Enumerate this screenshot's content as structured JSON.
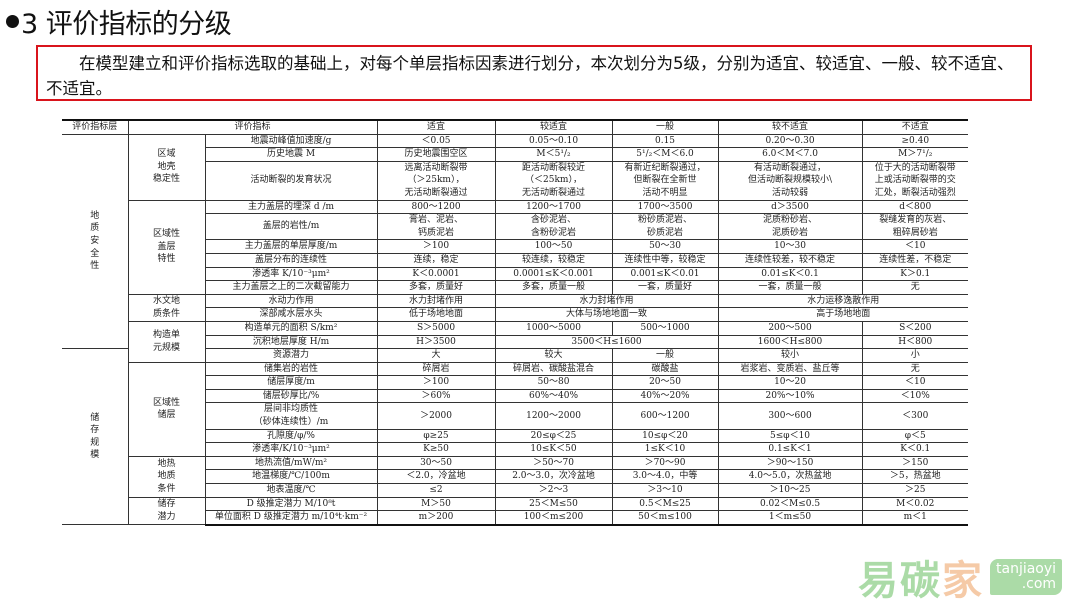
{
  "title": "3 评价指标的分级",
  "intro": "在模型建立和评价指标选取的基础上，对每个单层指标因素进行划分，本次划分为5级，分别为适宜、较适宜、一般、较不适宜、不适宜。",
  "watermark": {
    "cn1": "易",
    "cn2": "碳",
    "cn3": "家",
    "en1": "tanjiaoyi",
    "en2": ".com"
  },
  "table": {
    "header": [
      {
        "text": "评价指标层"
      },
      {
        "text": "评价指标",
        "colspan": 2
      },
      {
        "text": "适宜"
      },
      {
        "text": "较适宜"
      },
      {
        "text": "一般"
      },
      {
        "text": "较不适宜"
      },
      {
        "text": "不适宜"
      }
    ],
    "rows": [
      [
        {
          "text": "地\n质\n安\n全\n性",
          "rowspan": 13,
          "cls": "layer"
        },
        {
          "text": "区域\n地壳\n稳定性",
          "rowspan": 3
        },
        {
          "text": "地震动峰值加速度/g"
        },
        {
          "text": "＜0.05"
        },
        {
          "text": "0.05～0.10"
        },
        {
          "text": "0.15"
        },
        {
          "text": "0.20～0.30"
        },
        {
          "text": "≥0.40"
        }
      ],
      [
        {
          "text": "历史地震 M"
        },
        {
          "text": "历史地震围空区"
        },
        {
          "text": "M＜5¹/₂"
        },
        {
          "text": "5¹/₂＜M＜6.0"
        },
        {
          "text": "6.0＜M＜7.0"
        },
        {
          "text": "M＞7¹/₂"
        }
      ],
      [
        {
          "text": "活动断裂的发育状况"
        },
        {
          "text": "远离活动断裂带\n（＞25km），\n无活动断裂通过"
        },
        {
          "text": "距活动断裂较近\n（＜25km），\n无活动断裂通过"
        },
        {
          "text": "有新近纪断裂通过，\n但断裂在全新世\n活动不明显"
        },
        {
          "text": "有活动断裂通过，\n但活动断裂规模较小\\\n活动较弱"
        },
        {
          "text": "位于大的活动断裂带\n上或活动断裂带的交\n汇处，断裂活动强烈"
        }
      ],
      [
        {
          "text": "区域性\n盖层\n特性",
          "rowspan": 6
        },
        {
          "text": "主力盖层的埋深 d /m"
        },
        {
          "text": "800～1200"
        },
        {
          "text": "1200～1700"
        },
        {
          "text": "1700～3500"
        },
        {
          "text": "d＞3500"
        },
        {
          "text": "d＜800"
        }
      ],
      [
        {
          "text": "盖层的岩性/m"
        },
        {
          "text": "膏岩、泥岩、\n钙质泥岩"
        },
        {
          "text": "含砂泥岩、\n含粉砂泥岩"
        },
        {
          "text": "粉砂质泥岩、\n砂质泥岩"
        },
        {
          "text": "泥质粉砂岩、\n泥质砂岩"
        },
        {
          "text": "裂缝发育的灰岩、\n粗碎屑砂岩"
        }
      ],
      [
        {
          "text": "主力盖层的单层厚度/m"
        },
        {
          "text": "＞100"
        },
        {
          "text": "100～50"
        },
        {
          "text": "50～30"
        },
        {
          "text": "10～30"
        },
        {
          "text": "＜10"
        }
      ],
      [
        {
          "text": "盖层分布的连续性"
        },
        {
          "text": "连续，稳定"
        },
        {
          "text": "较连续，较稳定"
        },
        {
          "text": "连续性中等，较稳定"
        },
        {
          "text": "连续性较差，较不稳定"
        },
        {
          "text": "连续性差，不稳定"
        }
      ],
      [
        {
          "text": "渗透率 K/10⁻³μm²"
        },
        {
          "text": "K＜0.0001"
        },
        {
          "text": "0.0001≤K＜0.001"
        },
        {
          "text": "0.001≤K＜0.01"
        },
        {
          "text": "0.01≤K＜0.1"
        },
        {
          "text": "K＞0.1"
        }
      ],
      [
        {
          "text": "主力盖层之上的二次截留能力"
        },
        {
          "text": "多套，质量好"
        },
        {
          "text": "多套，质量一般"
        },
        {
          "text": "一套，质量好"
        },
        {
          "text": "一套，质量一般"
        },
        {
          "text": "无"
        }
      ],
      [
        {
          "text": "水文地\n质条件",
          "rowspan": 2
        },
        {
          "text": "水动力作用"
        },
        {
          "text": "水力封堵作用"
        },
        {
          "text": "水力封堵作用",
          "colspan": 2
        },
        {
          "text": "水力运移逸散作用",
          "colspan": 2
        }
      ],
      [
        {
          "text": "深部咸水层水头"
        },
        {
          "text": "低于场地地面"
        },
        {
          "text": "大体与场地地面一致",
          "colspan": 2
        },
        {
          "text": "高于场地地面",
          "colspan": 2
        }
      ],
      [
        {
          "text": "构造单\n元规模",
          "rowspan": 3
        },
        {
          "text": "构造单元的面积 S/km²"
        },
        {
          "text": "S＞5000"
        },
        {
          "text": "1000～5000"
        },
        {
          "text": "500～1000"
        },
        {
          "text": "200～500"
        },
        {
          "text": "S＜200"
        }
      ],
      [
        {
          "text": "沉积地层厚度 H/m"
        },
        {
          "text": "H＞3500"
        },
        {
          "text": "3500＜H≤1600",
          "colspan": 2
        },
        {
          "text": "1600＜H≤800"
        },
        {
          "text": "H＜800"
        }
      ],
      [
        {
          "text": "储\n存\n规\n模",
          "rowspan": 15,
          "cls": "layer"
        },
        {
          "text": "资源潜力"
        },
        {
          "text": "大"
        },
        {
          "text": "较大"
        },
        {
          "text": "一般"
        },
        {
          "text": "较小"
        },
        {
          "text": "小"
        }
      ],
      [
        {
          "text": "区域性\n储层",
          "rowspan": 6
        },
        {
          "text": "储集岩的岩性"
        },
        {
          "text": "碎屑岩"
        },
        {
          "text": "碎屑岩、碳酸盐混合"
        },
        {
          "text": "碳酸盐"
        },
        {
          "text": "岩浆岩、变质岩、盐丘等"
        },
        {
          "text": "无"
        }
      ],
      [
        {
          "text": "储层厚度/m"
        },
        {
          "text": "＞100"
        },
        {
          "text": "50～80"
        },
        {
          "text": "20～50"
        },
        {
          "text": "10～20"
        },
        {
          "text": "＜10"
        }
      ],
      [
        {
          "text": "储层砂厚比/%"
        },
        {
          "text": "＞60%"
        },
        {
          "text": "60%～40%"
        },
        {
          "text": "40%～20%"
        },
        {
          "text": "20%～10%"
        },
        {
          "text": "＜10%"
        }
      ],
      [
        {
          "text": "层间非均质性\n（砂体连续性）/m"
        },
        {
          "text": "＞2000"
        },
        {
          "text": "1200～2000"
        },
        {
          "text": "600～1200"
        },
        {
          "text": "300～600"
        },
        {
          "text": "＜300"
        }
      ],
      [
        {
          "text": "孔隙度/φ/%"
        },
        {
          "text": "φ≥25"
        },
        {
          "text": "20≤φ＜25"
        },
        {
          "text": "10≤φ＜20"
        },
        {
          "text": "5≤φ＜10"
        },
        {
          "text": "φ＜5"
        }
      ],
      [
        {
          "text": "渗透率/K/10⁻³μm²"
        },
        {
          "text": "K≥50"
        },
        {
          "text": "10≤K＜50"
        },
        {
          "text": "1≤K＜10"
        },
        {
          "text": "0.1≤K＜1"
        },
        {
          "text": "K＜0.1"
        }
      ],
      [
        {
          "text": "地热\n地质\n条件",
          "rowspan": 3
        },
        {
          "text": "地热流值/mW/m²"
        },
        {
          "text": "30～50"
        },
        {
          "text": "＞50～70"
        },
        {
          "text": "＞70～90"
        },
        {
          "text": "＞90～150"
        },
        {
          "text": "＞150"
        }
      ],
      [
        {
          "text": "地温梯度/℃/100m"
        },
        {
          "text": "＜2.0，冷盆地"
        },
        {
          "text": "2.0～3.0，次冷盆地"
        },
        {
          "text": "3.0～4.0，中等"
        },
        {
          "text": "4.0～5.0，次热盆地"
        },
        {
          "text": "＞5，热盆地"
        }
      ],
      [
        {
          "text": "地表温度/℃"
        },
        {
          "text": "≤2"
        },
        {
          "text": "＞2～3"
        },
        {
          "text": "＞3～10"
        },
        {
          "text": "＞10～25"
        },
        {
          "text": "＞25"
        }
      ],
      [
        {
          "text": "储存\n潜力",
          "rowspan": 2
        },
        {
          "text": "D 级推定潜力 M/10⁸t"
        },
        {
          "text": "M＞50"
        },
        {
          "text": "25＜M≤50"
        },
        {
          "text": "0.5＜M≤25"
        },
        {
          "text": "0.02＜M≤0.5"
        },
        {
          "text": "M＜0.02"
        }
      ],
      [
        {
          "text": "单位面积 D 级推定潜力 m/10⁴t·km⁻²"
        },
        {
          "text": "m＞200"
        },
        {
          "text": "100＜m≤200"
        },
        {
          "text": "50＜m≤100"
        },
        {
          "text": "1＜m≤50"
        },
        {
          "text": "m＜1"
        }
      ]
    ]
  }
}
